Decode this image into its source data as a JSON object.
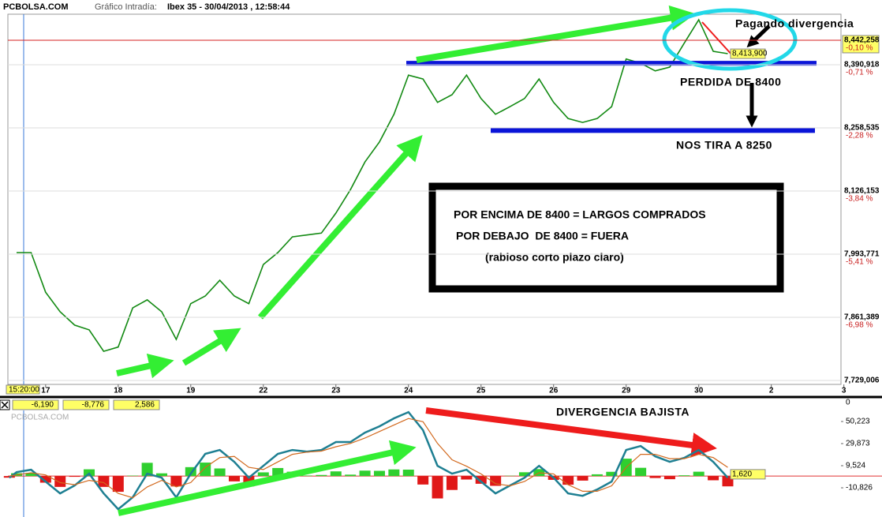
{
  "header": {
    "site": "PCBOLSA.COM",
    "label": "Gráfico Intradía:",
    "instrument": "Ibex 35 - 30/04/2013 , 12:58:44"
  },
  "chart_data": [
    {
      "type": "line",
      "x": [
        -0.4,
        -0.2,
        0,
        0.2,
        0.4,
        0.6,
        0.8,
        1,
        1.2,
        1.4,
        1.6,
        1.8,
        2,
        2.2,
        2.4,
        2.6,
        2.8,
        3,
        3.2,
        3.4,
        3.6,
        3.8,
        4,
        4.2,
        4.4,
        4.6,
        4.8,
        5,
        5.2,
        5.4,
        5.6,
        5.8,
        6,
        6.2,
        6.4,
        6.6,
        6.8,
        7,
        7.2,
        7.4,
        7.6,
        7.8,
        8,
        8.2,
        8.4,
        8.6,
        8.8,
        9,
        9.2,
        9.4
      ],
      "series": [
        {
          "color": "#138a13",
          "values": [
            7997,
            7997,
            7914,
            7873,
            7845,
            7835,
            7790,
            7799,
            7881,
            7898,
            7873,
            7815,
            7890,
            7906,
            7939,
            7906,
            7890,
            7972,
            7997,
            8030,
            8034,
            8038,
            8080,
            8129,
            8187,
            8229,
            8287,
            8369,
            8361,
            8312,
            8328,
            8369,
            8320,
            8287,
            8303,
            8320,
            8361,
            8312,
            8278,
            8270,
            8278,
            8303,
            8403,
            8394,
            8378,
            8386,
            8436,
            8485,
            8419,
            8414
          ]
        }
      ],
      "xlim": [
        -0.52,
        10.96
      ],
      "xticks": [
        {
          "value": 0,
          "label": "17"
        },
        {
          "value": 1,
          "label": "18"
        },
        {
          "value": 2,
          "label": "19"
        },
        {
          "value": 3,
          "label": "22"
        },
        {
          "value": 4,
          "label": "23"
        },
        {
          "value": 5,
          "label": "24"
        },
        {
          "value": 6,
          "label": "25"
        },
        {
          "value": 7,
          "label": "26"
        },
        {
          "value": 8,
          "label": "29"
        },
        {
          "value": 9,
          "label": "30"
        },
        {
          "value": 10,
          "label": "2"
        },
        {
          "value": 11,
          "label": "3"
        }
      ],
      "ylim": [
        7720.7,
        8496.8
      ],
      "yticks": [
        {
          "value": 8442.258,
          "label": "8,442,258"
        },
        {
          "value": 8390.918,
          "label": "8,390,918"
        },
        {
          "value": 8258.535,
          "label": "8,258,535"
        },
        {
          "value": 8126.153,
          "label": "8,126,153"
        },
        {
          "value": 7993.771,
          "label": "7,993,771"
        },
        {
          "value": 7861.389,
          "label": "7,861,389"
        },
        {
          "value": 7729.006,
          "label": "7,729,006"
        }
      ],
      "ytick_changes": [
        "-0,10 %",
        "-0,71 %",
        "-2,28 %",
        "-3,84 %",
        "-5,41 %",
        "-6,98 %",
        null
      ],
      "grid": true,
      "level_lines": [
        8394,
        8253
      ],
      "level_color": "#0a14d8",
      "last_time": "15:20:00",
      "last_price": {
        "value": 8413.9,
        "label": "8,413,900"
      },
      "annotations": [
        "Pagando divergencia",
        "PERDIDA DE 8400",
        "NOS TIRA A 8250",
        "POR ENCIMA DE 8400 = LARGOS COMPRADOS",
        "POR DEBAJO  DE 8400 = FUERA",
        "(rabioso corto plazo claro)"
      ]
    },
    {
      "type": "macd",
      "watermark": "PCBOLSA.COM",
      "readout": [
        {
          "value": -6.19,
          "label": "-6,190"
        },
        {
          "value": -8.776,
          "label": "-8,776"
        },
        {
          "value": 2.586,
          "label": "2,586"
        }
      ],
      "top_label": 0,
      "x": [
        -0.5,
        -0.4,
        -0.2,
        0,
        0.2,
        0.4,
        0.6,
        0.8,
        1,
        1.2,
        1.4,
        1.6,
        1.8,
        2,
        2.2,
        2.4,
        2.6,
        2.8,
        3,
        3.2,
        3.4,
        3.6,
        3.8,
        4,
        4.2,
        4.4,
        4.6,
        4.8,
        5,
        5.2,
        5.4,
        5.6,
        5.8,
        6,
        6.2,
        6.4,
        6.6,
        6.8,
        7,
        7.2,
        7.4,
        7.6,
        7.8,
        8,
        8.2,
        8.4,
        8.6,
        8.8,
        9,
        9.2,
        9.4
      ],
      "series": [
        {
          "color": "#1e7f92",
          "values": [
            -1.5,
            3.6,
            5.8,
            -5.1,
            -16,
            -8.7,
            2.2,
            -16,
            -30.5,
            -19.6,
            2.2,
            -1.5,
            -19.6,
            2.2,
            20.4,
            24,
            13.1,
            -1.5,
            9.4,
            20.4,
            24,
            22.5,
            24,
            31.3,
            31.3,
            40,
            45.8,
            53.1,
            58.9,
            42.2,
            9.4,
            2.2,
            5.8,
            -5.1,
            -16,
            -8.7,
            -1.5,
            9.4,
            -1.5,
            -16,
            -18.2,
            -12.4,
            -5.1,
            24,
            27.6,
            18.2,
            13.1,
            16.7,
            24,
            13.1,
            -1.5
          ]
        },
        {
          "color": "#d2691e",
          "values": [
            0,
            1,
            3,
            1,
            -6,
            -8,
            -4,
            -6,
            -16,
            -20,
            -10,
            -4,
            -10,
            -6,
            8,
            17,
            18,
            8,
            6,
            13,
            20,
            22,
            23,
            27,
            30,
            35,
            41,
            47,
            53,
            50,
            30,
            15,
            9,
            2,
            -7,
            -9,
            -5,
            3,
            2,
            -8,
            -14,
            -14,
            -9,
            8,
            20,
            20,
            16,
            16,
            20,
            17,
            8
          ]
        }
      ],
      "histogram": {
        "positive_color": "#2fcf2f",
        "negative_color": "#e01818",
        "values": [
          -1.5,
          2.6,
          2.8,
          -6.1,
          -10,
          -0.7,
          6.2,
          -10,
          -14.5,
          0.4,
          12.2,
          2.5,
          -9.6,
          8.2,
          12.4,
          7,
          -4.9,
          -9.5,
          3.4,
          7.4,
          4,
          0.5,
          1,
          4.3,
          1.3,
          5,
          4.8,
          6.1,
          5.9,
          -7.8,
          -20.6,
          -12.8,
          -3.2,
          -7.1,
          -9,
          0.3,
          3.5,
          6.4,
          -3.5,
          -8,
          -4.2,
          1.6,
          3.9,
          16,
          7.6,
          -1.8,
          -2.9,
          0.7,
          4,
          -3.9,
          -9.5
        ]
      },
      "xlim": [
        -0.52,
        10.96
      ],
      "ylim": [
        -37.7,
        71.3
      ],
      "yticks": [
        {
          "value": 50.223,
          "label": "50,223"
        },
        {
          "value": 29.873,
          "label": "29,873"
        },
        {
          "value": 9.524,
          "label": "9,524"
        },
        {
          "value": -10.826,
          "label": "-10,826"
        }
      ],
      "zero_color": "#e03030",
      "last_value": {
        "value": 1.62,
        "label": "1,620"
      },
      "annotation": "DIVERGENCIA BAJISTA"
    }
  ]
}
